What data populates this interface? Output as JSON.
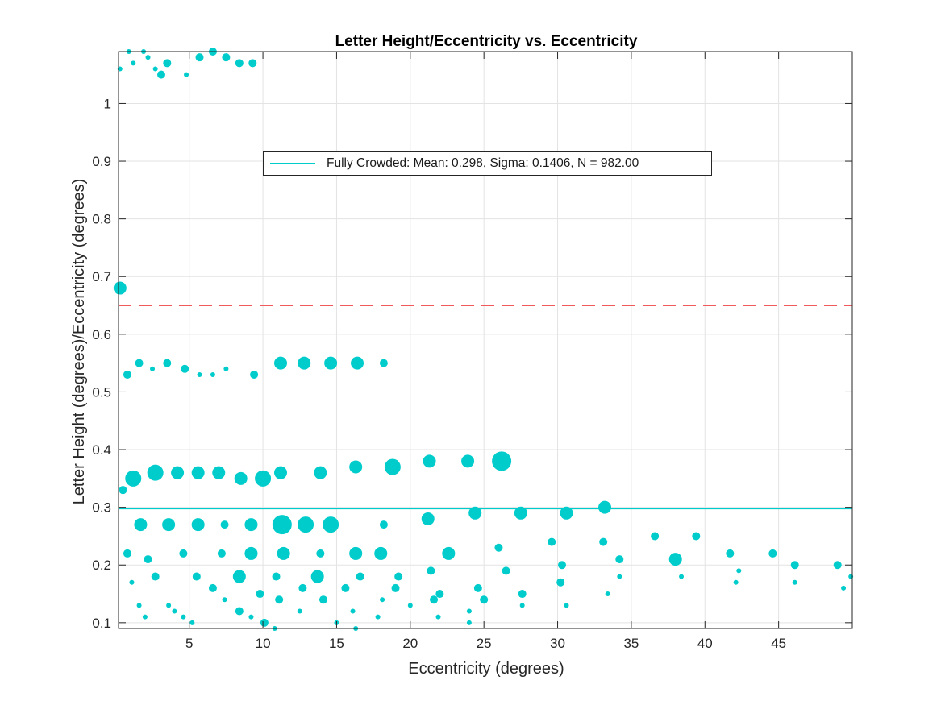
{
  "chart_data": {
    "type": "scatter",
    "title": "Letter Height/Eccentricity vs. Eccentricity",
    "xlabel": "Eccentricity (degrees)",
    "ylabel": "Letter Height (degrees)/Eccentricity (degrees)",
    "xlim": [
      0.2,
      50
    ],
    "ylim": [
      0.09,
      1.09
    ],
    "xticks": [
      5,
      10,
      15,
      20,
      25,
      30,
      35,
      40,
      45
    ],
    "yticks": [
      0.1,
      0.2,
      0.3,
      0.4,
      0.5,
      0.6,
      0.7,
      0.8,
      0.9,
      1
    ],
    "grid": true,
    "legend_position": "top-center",
    "series": [
      {
        "name": "Fully Crowded: Mean: 0.298, Sigma: 0.1406, N = 982.00",
        "color": "#00CCCC",
        "reference_line": 0.298,
        "points": [
          [
            0.9,
            1.09,
            1
          ],
          [
            1.9,
            1.09,
            1
          ],
          [
            6.6,
            1.09,
            2
          ],
          [
            0.3,
            1.06,
            1
          ],
          [
            1.2,
            1.07,
            1
          ],
          [
            2.2,
            1.08,
            1
          ],
          [
            2.7,
            1.06,
            1
          ],
          [
            3.1,
            1.05,
            2
          ],
          [
            3.5,
            1.07,
            2
          ],
          [
            4.8,
            1.05,
            1
          ],
          [
            5.7,
            1.08,
            2
          ],
          [
            7.5,
            1.08,
            2
          ],
          [
            8.4,
            1.07,
            2
          ],
          [
            9.3,
            1.07,
            2
          ],
          [
            0.3,
            0.68,
            3
          ],
          [
            0.8,
            0.53,
            2
          ],
          [
            1.6,
            0.55,
            2
          ],
          [
            2.5,
            0.54,
            1
          ],
          [
            3.5,
            0.55,
            2
          ],
          [
            4.7,
            0.54,
            2
          ],
          [
            5.7,
            0.53,
            1
          ],
          [
            6.6,
            0.53,
            1
          ],
          [
            7.5,
            0.54,
            1
          ],
          [
            9.4,
            0.53,
            2
          ],
          [
            11.2,
            0.55,
            3
          ],
          [
            12.8,
            0.55,
            3
          ],
          [
            14.6,
            0.55,
            3
          ],
          [
            16.4,
            0.55,
            3
          ],
          [
            18.2,
            0.55,
            2
          ],
          [
            0.5,
            0.33,
            2
          ],
          [
            1.2,
            0.35,
            4
          ],
          [
            2.7,
            0.36,
            4
          ],
          [
            4.2,
            0.36,
            3
          ],
          [
            5.6,
            0.36,
            3
          ],
          [
            7.0,
            0.36,
            3
          ],
          [
            8.5,
            0.35,
            3
          ],
          [
            10.0,
            0.35,
            4
          ],
          [
            11.2,
            0.36,
            3
          ],
          [
            13.9,
            0.36,
            3
          ],
          [
            16.3,
            0.37,
            3
          ],
          [
            18.8,
            0.37,
            4
          ],
          [
            21.3,
            0.38,
            3
          ],
          [
            23.9,
            0.38,
            3
          ],
          [
            26.2,
            0.38,
            5
          ],
          [
            1.7,
            0.27,
            3
          ],
          [
            3.6,
            0.27,
            3
          ],
          [
            5.6,
            0.27,
            3
          ],
          [
            7.4,
            0.27,
            2
          ],
          [
            9.2,
            0.27,
            3
          ],
          [
            11.3,
            0.27,
            5
          ],
          [
            12.9,
            0.27,
            4
          ],
          [
            14.6,
            0.27,
            4
          ],
          [
            18.2,
            0.27,
            2
          ],
          [
            21.2,
            0.28,
            3
          ],
          [
            24.4,
            0.29,
            3
          ],
          [
            27.5,
            0.29,
            3
          ],
          [
            30.6,
            0.29,
            3
          ],
          [
            33.2,
            0.3,
            3
          ],
          [
            0.8,
            0.22,
            2
          ],
          [
            2.2,
            0.21,
            2
          ],
          [
            4.6,
            0.22,
            2
          ],
          [
            7.2,
            0.22,
            2
          ],
          [
            9.2,
            0.22,
            3
          ],
          [
            11.4,
            0.22,
            3
          ],
          [
            13.9,
            0.22,
            2
          ],
          [
            16.3,
            0.22,
            3
          ],
          [
            18.0,
            0.22,
            3
          ],
          [
            22.6,
            0.22,
            3
          ],
          [
            26.0,
            0.23,
            2
          ],
          [
            29.6,
            0.24,
            2
          ],
          [
            33.1,
            0.24,
            2
          ],
          [
            36.6,
            0.25,
            2
          ],
          [
            39.4,
            0.25,
            2
          ],
          [
            41.7,
            0.22,
            2
          ],
          [
            44.6,
            0.22,
            2
          ],
          [
            30.3,
            0.2,
            2
          ],
          [
            34.2,
            0.21,
            2
          ],
          [
            38.0,
            0.21,
            3
          ],
          [
            46.1,
            0.2,
            2
          ],
          [
            49.0,
            0.2,
            2
          ],
          [
            1.1,
            0.17,
            1
          ],
          [
            2.7,
            0.18,
            2
          ],
          [
            5.5,
            0.18,
            2
          ],
          [
            6.6,
            0.16,
            2
          ],
          [
            8.4,
            0.18,
            3
          ],
          [
            10.9,
            0.18,
            2
          ],
          [
            12.7,
            0.16,
            2
          ],
          [
            13.7,
            0.18,
            3
          ],
          [
            15.6,
            0.16,
            2
          ],
          [
            16.6,
            0.18,
            2
          ],
          [
            19.2,
            0.18,
            2
          ],
          [
            21.4,
            0.19,
            2
          ],
          [
            24.6,
            0.16,
            2
          ],
          [
            26.5,
            0.19,
            2
          ],
          [
            30.2,
            0.17,
            2
          ],
          [
            34.2,
            0.18,
            1
          ],
          [
            38.4,
            0.18,
            1
          ],
          [
            42.3,
            0.19,
            1
          ],
          [
            42.1,
            0.17,
            1
          ],
          [
            46.1,
            0.17,
            1
          ],
          [
            49.9,
            0.18,
            1
          ],
          [
            49.4,
            0.16,
            1
          ],
          [
            1.6,
            0.13,
            1
          ],
          [
            2.0,
            0.11,
            1
          ],
          [
            3.6,
            0.13,
            1
          ],
          [
            4.0,
            0.12,
            1
          ],
          [
            4.6,
            0.11,
            1
          ],
          [
            5.2,
            0.1,
            1
          ],
          [
            7.4,
            0.14,
            1
          ],
          [
            8.4,
            0.12,
            2
          ],
          [
            9.2,
            0.11,
            1
          ],
          [
            9.8,
            0.15,
            2
          ],
          [
            10.1,
            0.1,
            2
          ],
          [
            11.1,
            0.14,
            2
          ],
          [
            10.8,
            0.09,
            1
          ],
          [
            12.5,
            0.12,
            1
          ],
          [
            14.1,
            0.14,
            2
          ],
          [
            15.0,
            0.1,
            1
          ],
          [
            16.1,
            0.12,
            1
          ],
          [
            16.3,
            0.09,
            1
          ],
          [
            17.8,
            0.11,
            1
          ],
          [
            18.1,
            0.14,
            1
          ],
          [
            19.0,
            0.16,
            2
          ],
          [
            20.0,
            0.13,
            1
          ],
          [
            21.6,
            0.14,
            2
          ],
          [
            21.9,
            0.11,
            1
          ],
          [
            22.0,
            0.15,
            2
          ],
          [
            24.0,
            0.12,
            1
          ],
          [
            24.0,
            0.1,
            1
          ],
          [
            25.0,
            0.14,
            2
          ],
          [
            27.6,
            0.15,
            2
          ],
          [
            27.6,
            0.13,
            1
          ],
          [
            30.6,
            0.13,
            1
          ],
          [
            33.4,
            0.15,
            1
          ]
        ]
      },
      {
        "name": "",
        "color": "#F05A5A",
        "reference_line": 0.65,
        "dashed": true
      }
    ]
  }
}
